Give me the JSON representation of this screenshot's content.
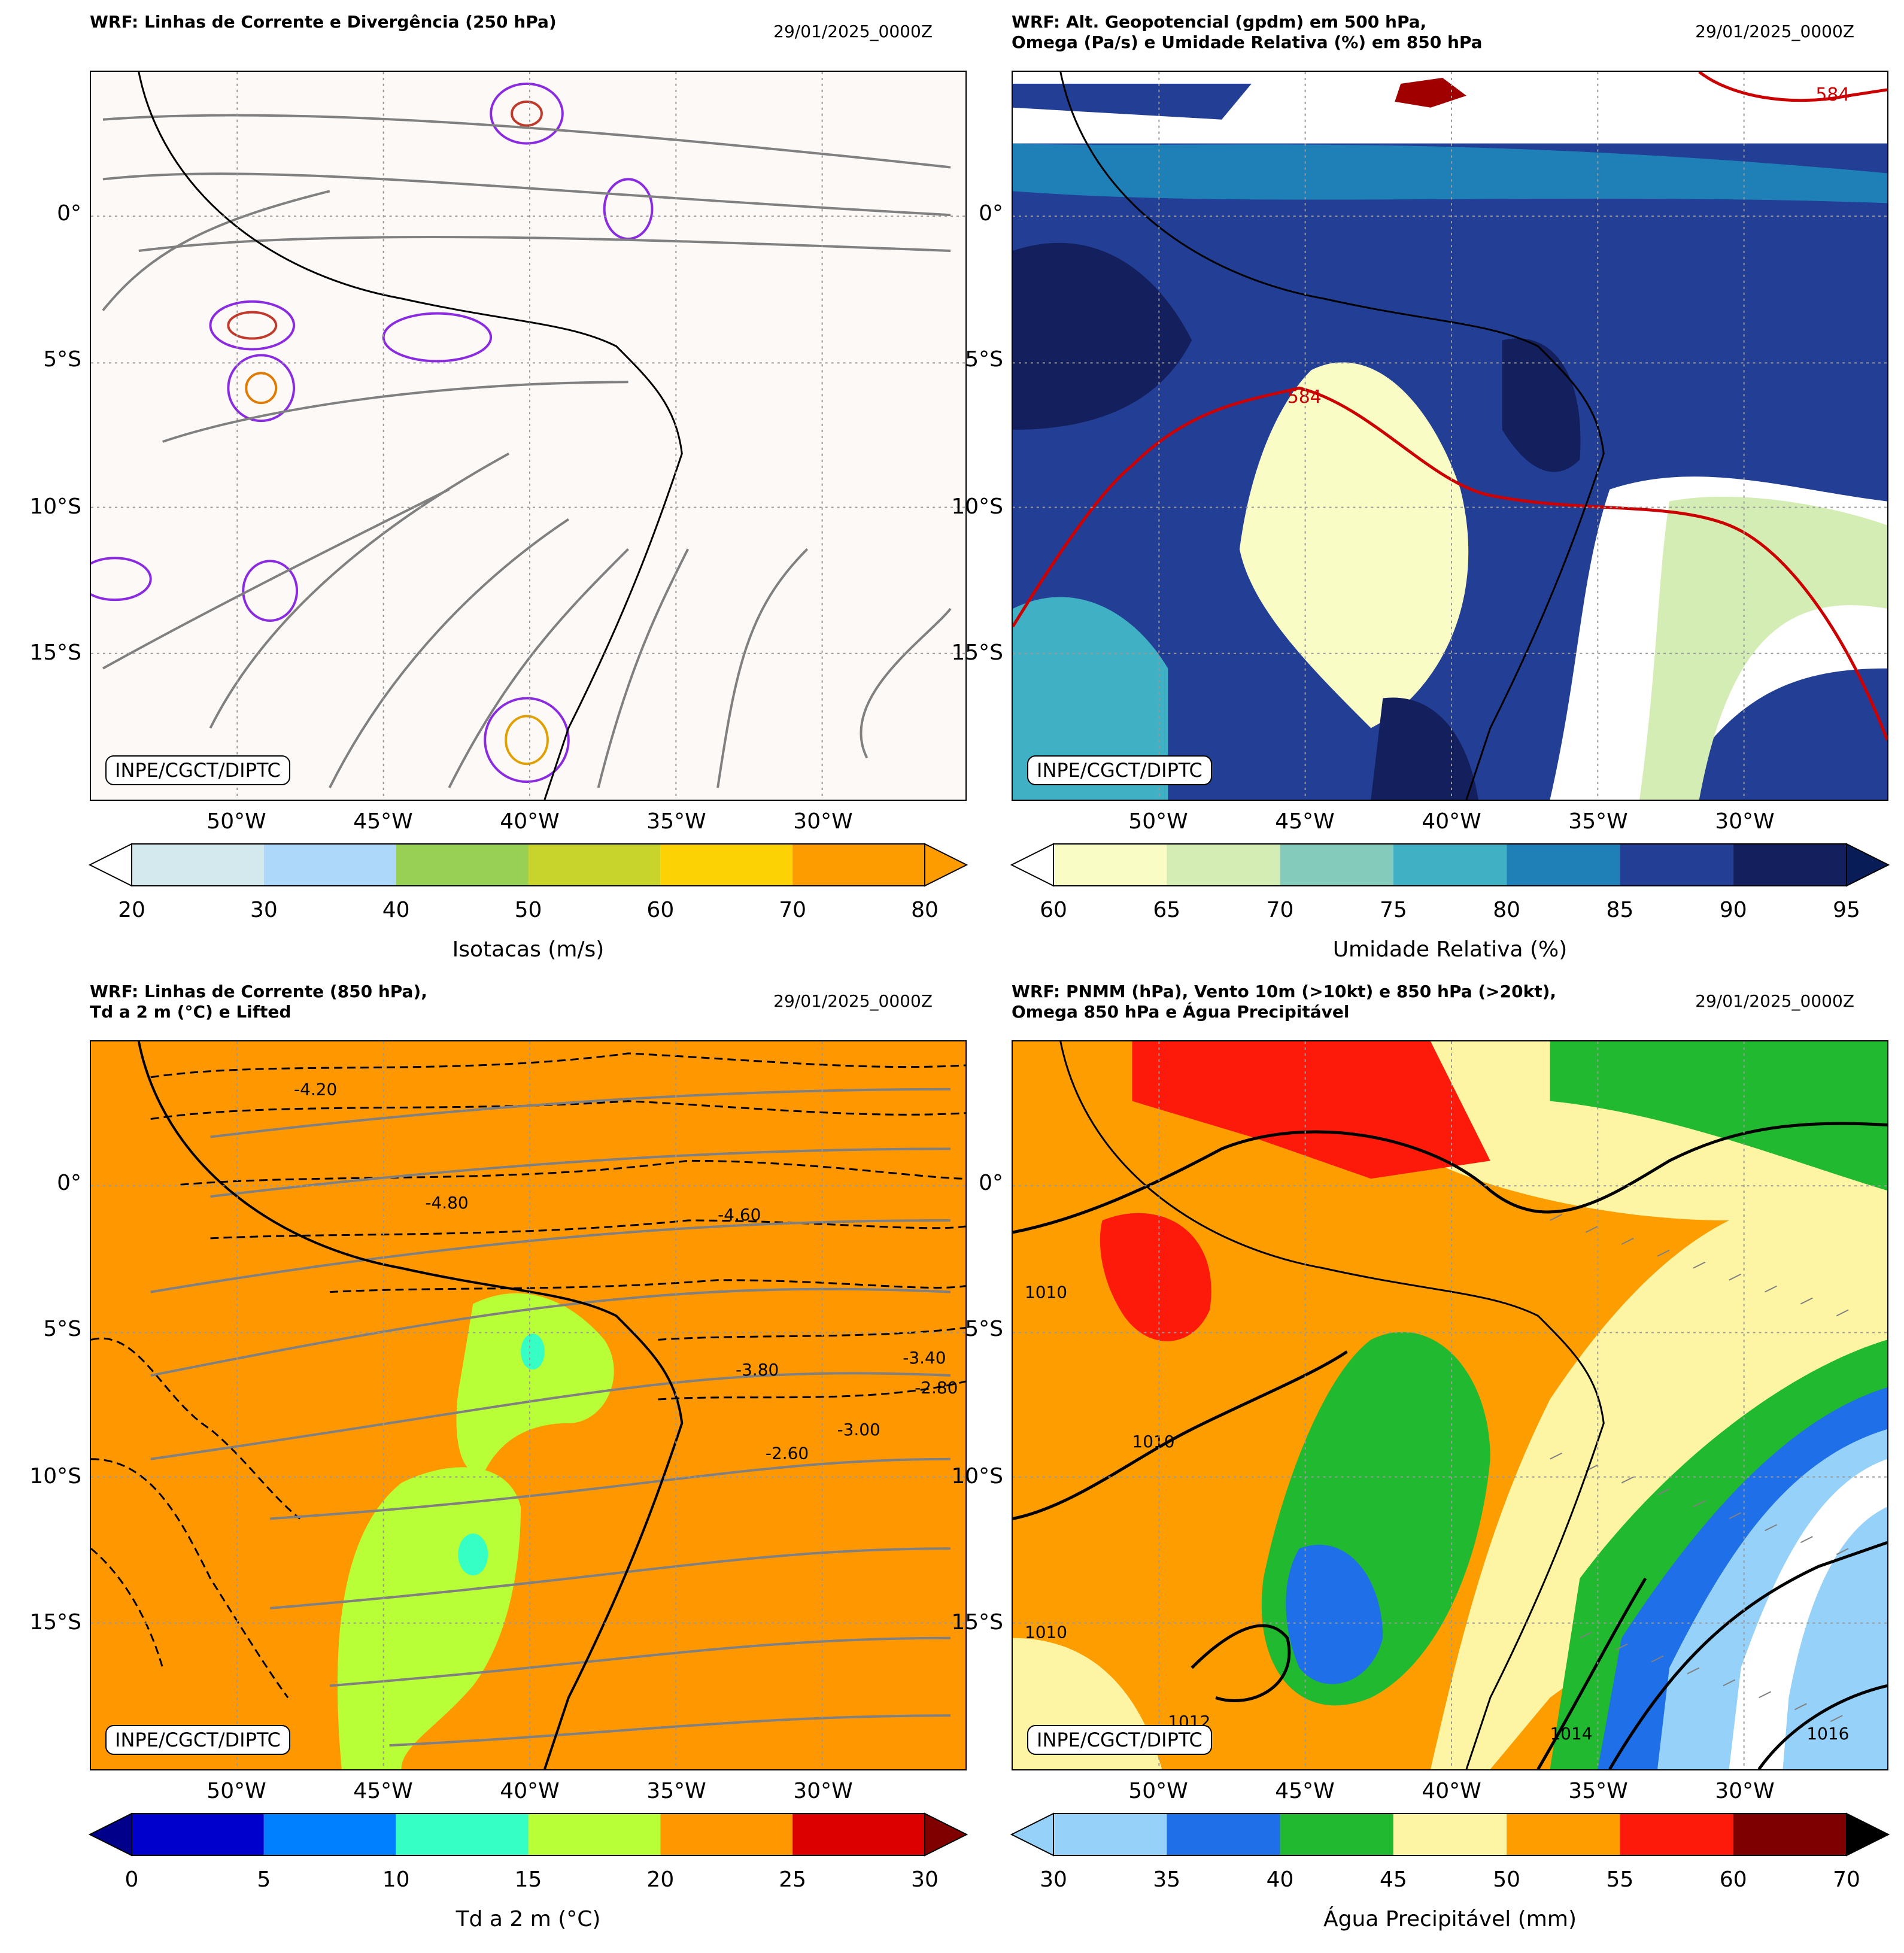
{
  "panels": [
    {
      "title": "WRF: Linhas de Corrente e Divergência (250 hPa)",
      "date": "29/01/2025_0000Z",
      "credit": "INPE/CGCT/DIPTC",
      "lat_labels": [
        "0°",
        "5°S",
        "10°S",
        "15°S"
      ],
      "lon_labels": [
        "50°W",
        "45°W",
        "40°W",
        "35°W",
        "30°W"
      ],
      "colorbar": {
        "label": "Isotacas (m/s)",
        "ticks": [
          "20",
          "30",
          "40",
          "50",
          "60",
          "70",
          "80"
        ],
        "colors": [
          "#d4e9ee",
          "#aed8f9",
          "#98d055",
          "#c8d42b",
          "#fdd204",
          "#fd9c00"
        ],
        "under": "#ffffff",
        "over": "#fd9c00"
      }
    },
    {
      "title": "WRF: Alt. Geopotencial (gpdm) em 500 hPa,\nOmega (Pa/s) e Umidade Relativa (%) em 850 hPa",
      "date": "29/01/2025_0000Z",
      "credit": "INPE/CGCT/DIPTC",
      "lat_labels": [
        "0°",
        "5°S",
        "10°S",
        "15°S"
      ],
      "lon_labels": [
        "50°W",
        "45°W",
        "40°W",
        "35°W",
        "30°W"
      ],
      "contour_labels": [
        "584",
        "584"
      ],
      "colorbar": {
        "label": "Umidade Relativa (%)",
        "ticks": [
          "60",
          "65",
          "70",
          "75",
          "80",
          "85",
          "90",
          "95"
        ],
        "colors": [
          "#fafcc6",
          "#d3edb4",
          "#85cbbb",
          "#40b0c4",
          "#1f80b8",
          "#233f95",
          "#141f5e"
        ],
        "under": "#ffffff",
        "over": "#081d58"
      }
    },
    {
      "title": "WRF: Linhas de Corrente (850 hPa),\nTd a 2 m (°C) e Lifted",
      "date": "29/01/2025_0000Z",
      "credit": "INPE/CGCT/DIPTC",
      "lat_labels": [
        "0°",
        "5°S",
        "10°S",
        "15°S"
      ],
      "lon_labels": [
        "50°W",
        "45°W",
        "40°W",
        "35°W",
        "30°W"
      ],
      "contour_labels": [
        "-4.20",
        "-4.80",
        "-4.60",
        "-3.00",
        "-2.60",
        "-3.80",
        "-3.40",
        "-2.80"
      ],
      "colorbar": {
        "label": "Td a 2 m (°C)",
        "ticks": [
          "0",
          "5",
          "10",
          "15",
          "20",
          "25",
          "30"
        ],
        "colors": [
          "#0000cd",
          "#0080ff",
          "#35ffc5",
          "#b9ff37",
          "#ff9800",
          "#dd0000"
        ],
        "under": "#00008b",
        "over": "#800000"
      }
    },
    {
      "title": "WRF: PNMM (hPa), Vento 10m (>10kt) e 850 hPa (>20kt),\nOmega 850 hPa e Água Precipitável",
      "date": "29/01/2025_0000Z",
      "credit": "INPE/CGCT/DIPTC",
      "lat_labels": [
        "0°",
        "5°S",
        "10°S",
        "15°S"
      ],
      "lon_labels": [
        "50°W",
        "45°W",
        "40°W",
        "35°W",
        "30°W"
      ],
      "contour_labels": [
        "1010",
        "1010",
        "1010",
        "1014",
        "1016",
        "1012"
      ],
      "colorbar": {
        "label": "Água Precipitável (mm)",
        "ticks": [
          "30",
          "35",
          "40",
          "45",
          "50",
          "55",
          "60",
          "70"
        ],
        "colors": [
          "#96d1f9",
          "#1f6fe8",
          "#21b92f",
          "#fef5a4",
          "#fd9d00",
          "#fd1a0a",
          "#7e0000"
        ],
        "under": "#96d1f9",
        "over": "#000000"
      }
    }
  ]
}
